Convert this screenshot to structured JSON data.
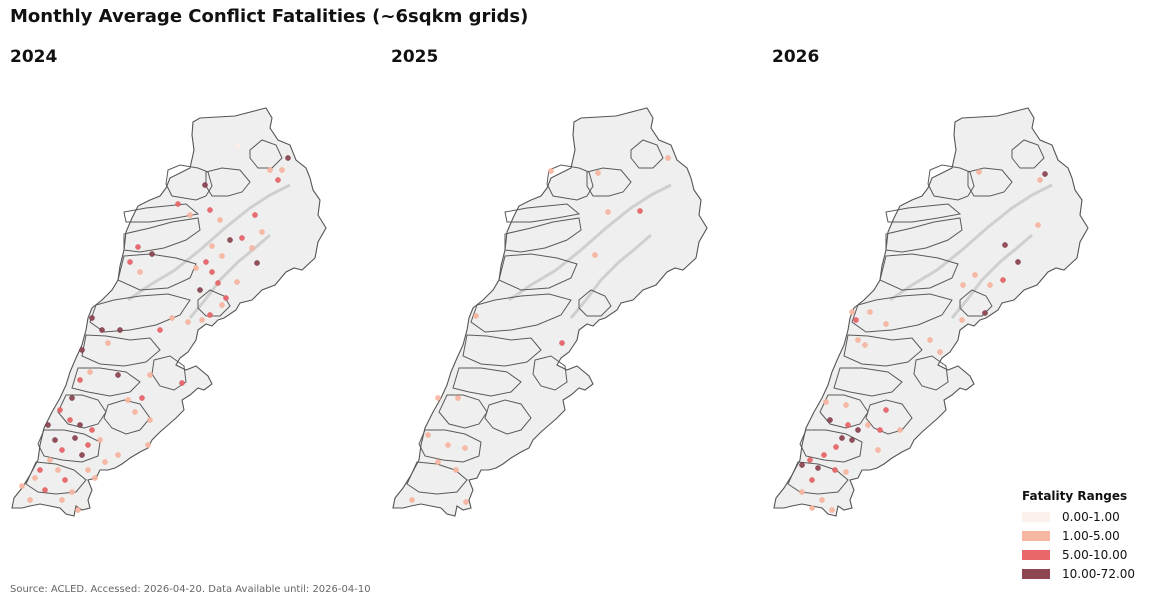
{
  "title": "Monthly Average Conflict Fatalities (~6sqkm grids)",
  "panels": [
    {
      "year": "2024",
      "dots": [
        [
          0,
          238,
          146
        ],
        [
          3,
          288,
          158
        ],
        [
          1,
          270,
          170
        ],
        [
          1,
          282,
          170
        ],
        [
          2,
          278,
          180
        ],
        [
          3,
          205,
          185
        ],
        [
          2,
          178,
          204
        ],
        [
          1,
          190,
          215
        ],
        [
          2,
          210,
          210
        ],
        [
          1,
          220,
          220
        ],
        [
          2,
          255,
          215
        ],
        [
          1,
          262,
          232
        ],
        [
          2,
          242,
          238
        ],
        [
          3,
          230,
          240
        ],
        [
          1,
          252,
          248
        ],
        [
          1,
          212,
          246
        ],
        [
          1,
          222,
          256
        ],
        [
          3,
          257,
          263
        ],
        [
          2,
          206,
          262
        ],
        [
          1,
          196,
          268
        ],
        [
          2,
          212,
          272
        ],
        [
          2,
          218,
          283
        ],
        [
          1,
          237,
          282
        ],
        [
          3,
          200,
          290
        ],
        [
          2,
          226,
          298
        ],
        [
          1,
          222,
          305
        ],
        [
          2,
          210,
          315
        ],
        [
          1,
          202,
          320
        ],
        [
          1,
          188,
          322
        ],
        [
          1,
          172,
          318
        ],
        [
          2,
          138,
          247
        ],
        [
          3,
          152,
          254
        ],
        [
          2,
          130,
          262
        ],
        [
          1,
          140,
          272
        ],
        [
          3,
          92,
          318
        ],
        [
          3,
          102,
          330
        ],
        [
          3,
          82,
          350
        ],
        [
          3,
          120,
          330
        ],
        [
          1,
          108,
          343
        ],
        [
          2,
          160,
          330
        ],
        [
          3,
          118,
          375
        ],
        [
          1,
          150,
          375
        ],
        [
          2,
          182,
          383
        ],
        [
          1,
          90,
          372
        ],
        [
          2,
          80,
          380
        ],
        [
          3,
          72,
          398
        ],
        [
          2,
          60,
          410
        ],
        [
          3,
          48,
          425
        ],
        [
          2,
          70,
          420
        ],
        [
          3,
          80,
          425
        ],
        [
          2,
          92,
          430
        ],
        [
          3,
          55,
          440
        ],
        [
          2,
          62,
          450
        ],
        [
          3,
          75,
          438
        ],
        [
          1,
          100,
          440
        ],
        [
          2,
          88,
          445
        ],
        [
          3,
          82,
          455
        ],
        [
          1,
          50,
          460
        ],
        [
          2,
          40,
          470
        ],
        [
          1,
          35,
          478
        ],
        [
          2,
          45,
          490
        ],
        [
          1,
          30,
          500
        ],
        [
          1,
          58,
          470
        ],
        [
          2,
          65,
          480
        ],
        [
          1,
          72,
          492
        ],
        [
          1,
          62,
          500
        ],
        [
          1,
          88,
          470
        ],
        [
          1,
          95,
          478
        ],
        [
          1,
          78,
          510
        ],
        [
          1,
          148,
          445
        ],
        [
          1,
          128,
          400
        ],
        [
          2,
          142,
          398
        ],
        [
          1,
          135,
          412
        ],
        [
          1,
          150,
          420
        ],
        [
          1,
          118,
          455
        ],
        [
          1,
          105,
          462
        ],
        [
          1,
          22,
          486
        ]
      ]
    },
    {
      "year": "2025",
      "dots": [
        [
          1,
          551,
          171
        ],
        [
          1,
          598,
          173
        ],
        [
          1,
          668,
          158
        ],
        [
          2,
          640,
          211
        ],
        [
          1,
          608,
          212
        ],
        [
          1,
          595,
          255
        ],
        [
          2,
          562,
          343
        ],
        [
          1,
          476,
          316
        ],
        [
          1,
          458,
          398
        ],
        [
          1,
          438,
          398
        ],
        [
          1,
          428,
          435
        ],
        [
          1,
          448,
          445
        ],
        [
          1,
          465,
          448
        ],
        [
          1,
          438,
          462
        ],
        [
          1,
          456,
          470
        ],
        [
          1,
          466,
          502
        ],
        [
          1,
          412,
          500
        ]
      ]
    },
    {
      "year": "2026",
      "dots": [
        [
          1,
          979,
          172
        ],
        [
          3,
          1045,
          174
        ],
        [
          1,
          1040,
          180
        ],
        [
          3,
          1005,
          245
        ],
        [
          3,
          1018,
          262
        ],
        [
          1,
          975,
          275
        ],
        [
          2,
          1003,
          280
        ],
        [
          1,
          990,
          285
        ],
        [
          1,
          963,
          285
        ],
        [
          3,
          985,
          313
        ],
        [
          1,
          962,
          320
        ],
        [
          1,
          852,
          312
        ],
        [
          2,
          856,
          320
        ],
        [
          1,
          870,
          312
        ],
        [
          1,
          858,
          340
        ],
        [
          1,
          865,
          345
        ],
        [
          1,
          886,
          324
        ],
        [
          1,
          930,
          340
        ],
        [
          1,
          940,
          352
        ],
        [
          1,
          826,
          402
        ],
        [
          1,
          846,
          405
        ],
        [
          3,
          830,
          420
        ],
        [
          2,
          848,
          425
        ],
        [
          3,
          858,
          430
        ],
        [
          1,
          868,
          425
        ],
        [
          2,
          880,
          430
        ],
        [
          3,
          842,
          438
        ],
        [
          3,
          852,
          440
        ],
        [
          2,
          836,
          447
        ],
        [
          2,
          824,
          455
        ],
        [
          2,
          810,
          460
        ],
        [
          3,
          802,
          465
        ],
        [
          3,
          818,
          468
        ],
        [
          2,
          835,
          470
        ],
        [
          1,
          846,
          472
        ],
        [
          2,
          812,
          480
        ],
        [
          1,
          802,
          492
        ],
        [
          1,
          822,
          500
        ],
        [
          1,
          832,
          510
        ],
        [
          1,
          812,
          508
        ],
        [
          1,
          900,
          430
        ],
        [
          2,
          886,
          410
        ],
        [
          1,
          878,
          450
        ],
        [
          1,
          1038,
          225
        ]
      ]
    }
  ],
  "legend": {
    "title": "Fatality Ranges",
    "items": [
      {
        "label": "0.00-1.00",
        "color": "#fdf1ed"
      },
      {
        "label": "1.00-5.00",
        "color": "#f8b7a2"
      },
      {
        "label": "5.00-10.00",
        "color": "#e8676a"
      },
      {
        "label": "10.00-72.00",
        "color": "#8e4653"
      }
    ]
  },
  "source": "Source: ACLED. Accessed: 2026-04-20. Data Available until: 2026-04-10"
}
